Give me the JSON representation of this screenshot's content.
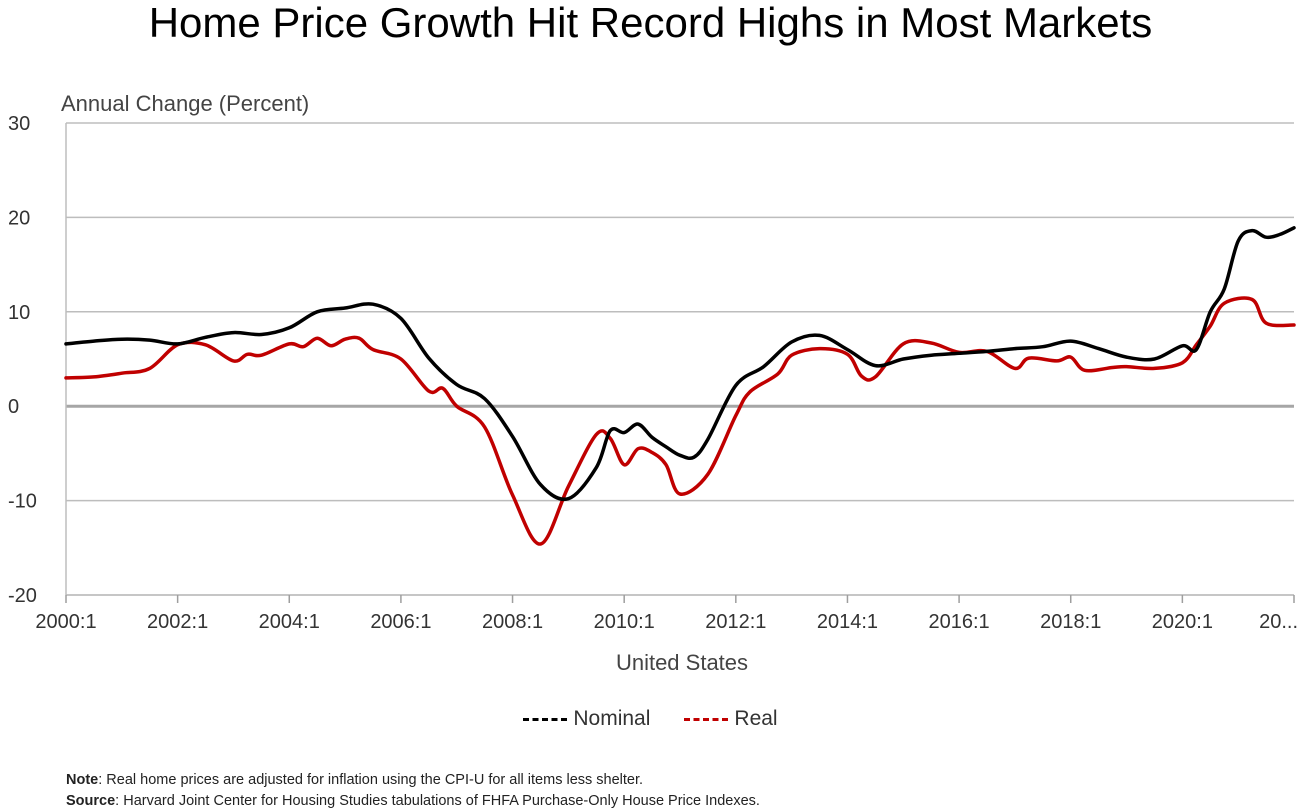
{
  "title": "Home Price Growth Hit Record Highs in Most Markets",
  "legend": {
    "nominal": "Nominal",
    "real": "Real"
  },
  "notes": {
    "note_label": "Note",
    "note_text": ": Real home prices are adjusted for inflation using the CPI-U for all items less shelter.",
    "source_label": "Source",
    "source_text": ": Harvard Joint Center for Housing Studies tabulations of FHFA Purchase-Only House Price Indexes."
  },
  "colors": {
    "nominal": "#000000",
    "real": "#c00000",
    "grid": "#bdbdbd",
    "zero": "#a6a6a6"
  },
  "chart_data": {
    "type": "line",
    "ylabel": "Annual Change (Percent)",
    "xlabel": "United States",
    "ylim": [
      -20,
      30
    ],
    "yticks": [
      30,
      20,
      10,
      0,
      -10,
      -20
    ],
    "xlim": [
      2000.0,
      2022.0
    ],
    "xticks": [
      {
        "x": 2000,
        "label": "2000:1"
      },
      {
        "x": 2002,
        "label": "2002:1"
      },
      {
        "x": 2004,
        "label": "2004:1"
      },
      {
        "x": 2006,
        "label": "2006:1"
      },
      {
        "x": 2008,
        "label": "2008:1"
      },
      {
        "x": 2010,
        "label": "2010:1"
      },
      {
        "x": 2012,
        "label": "2012:1"
      },
      {
        "x": 2014,
        "label": "2014:1"
      },
      {
        "x": 2016,
        "label": "2016:1"
      },
      {
        "x": 2018,
        "label": "2018:1"
      },
      {
        "x": 2020,
        "label": "2020:1"
      },
      {
        "x": 2022,
        "label": "20..."
      }
    ],
    "grid": true,
    "legend_position": "bottom",
    "series": [
      {
        "name": "Nominal",
        "color": "#000000",
        "points": [
          [
            2000.0,
            6.6
          ],
          [
            2000.5,
            6.9
          ],
          [
            2001.0,
            7.1
          ],
          [
            2001.5,
            7.0
          ],
          [
            2002.0,
            6.6
          ],
          [
            2002.5,
            7.3
          ],
          [
            2003.0,
            7.8
          ],
          [
            2003.5,
            7.6
          ],
          [
            2004.0,
            8.3
          ],
          [
            2004.5,
            10.0
          ],
          [
            2005.0,
            10.4
          ],
          [
            2005.5,
            10.8
          ],
          [
            2006.0,
            9.3
          ],
          [
            2006.5,
            5.1
          ],
          [
            2007.0,
            2.3
          ],
          [
            2007.5,
            0.8
          ],
          [
            2008.0,
            -3.2
          ],
          [
            2008.5,
            -8.3
          ],
          [
            2009.0,
            -9.8
          ],
          [
            2009.5,
            -6.5
          ],
          [
            2009.75,
            -2.6
          ],
          [
            2010.0,
            -2.8
          ],
          [
            2010.25,
            -1.9
          ],
          [
            2010.5,
            -3.3
          ],
          [
            2010.75,
            -4.3
          ],
          [
            2011.0,
            -5.2
          ],
          [
            2011.25,
            -5.4
          ],
          [
            2011.5,
            -3.5
          ],
          [
            2012.0,
            2.2
          ],
          [
            2012.5,
            4.2
          ],
          [
            2013.0,
            6.8
          ],
          [
            2013.5,
            7.5
          ],
          [
            2014.0,
            6.0
          ],
          [
            2014.5,
            4.3
          ],
          [
            2015.0,
            5.0
          ],
          [
            2015.5,
            5.4
          ],
          [
            2016.0,
            5.6
          ],
          [
            2016.5,
            5.8
          ],
          [
            2017.0,
            6.1
          ],
          [
            2017.5,
            6.3
          ],
          [
            2018.0,
            6.9
          ],
          [
            2018.5,
            6.1
          ],
          [
            2019.0,
            5.2
          ],
          [
            2019.5,
            5.0
          ],
          [
            2020.0,
            6.4
          ],
          [
            2020.25,
            6.0
          ],
          [
            2020.5,
            10.0
          ],
          [
            2020.75,
            12.4
          ],
          [
            2021.0,
            17.5
          ],
          [
            2021.25,
            18.6
          ],
          [
            2021.5,
            17.9
          ],
          [
            2021.75,
            18.2
          ],
          [
            2022.0,
            18.9
          ]
        ]
      },
      {
        "name": "Real",
        "color": "#c00000",
        "points": [
          [
            2000.0,
            3.0
          ],
          [
            2000.5,
            3.1
          ],
          [
            2001.0,
            3.5
          ],
          [
            2001.5,
            4.0
          ],
          [
            2002.0,
            6.5
          ],
          [
            2002.5,
            6.5
          ],
          [
            2003.0,
            4.8
          ],
          [
            2003.25,
            5.5
          ],
          [
            2003.5,
            5.4
          ],
          [
            2004.0,
            6.6
          ],
          [
            2004.25,
            6.3
          ],
          [
            2004.5,
            7.2
          ],
          [
            2004.75,
            6.4
          ],
          [
            2005.0,
            7.1
          ],
          [
            2005.25,
            7.2
          ],
          [
            2005.5,
            6.0
          ],
          [
            2006.0,
            5.0
          ],
          [
            2006.5,
            1.6
          ],
          [
            2006.75,
            1.9
          ],
          [
            2007.0,
            0.0
          ],
          [
            2007.5,
            -2.2
          ],
          [
            2008.0,
            -9.4
          ],
          [
            2008.5,
            -14.6
          ],
          [
            2009.0,
            -8.5
          ],
          [
            2009.5,
            -3.0
          ],
          [
            2009.75,
            -3.4
          ],
          [
            2010.0,
            -6.2
          ],
          [
            2010.25,
            -4.5
          ],
          [
            2010.5,
            -4.9
          ],
          [
            2010.75,
            -6.2
          ],
          [
            2011.0,
            -9.3
          ],
          [
            2011.5,
            -7.2
          ],
          [
            2012.0,
            -1.0
          ],
          [
            2012.25,
            1.5
          ],
          [
            2012.75,
            3.4
          ],
          [
            2013.0,
            5.4
          ],
          [
            2013.5,
            6.1
          ],
          [
            2014.0,
            5.5
          ],
          [
            2014.25,
            3.2
          ],
          [
            2014.5,
            3.1
          ],
          [
            2015.0,
            6.6
          ],
          [
            2015.5,
            6.7
          ],
          [
            2016.0,
            5.7
          ],
          [
            2016.5,
            5.8
          ],
          [
            2017.0,
            4.0
          ],
          [
            2017.25,
            5.1
          ],
          [
            2017.75,
            4.8
          ],
          [
            2018.0,
            5.2
          ],
          [
            2018.25,
            3.8
          ],
          [
            2018.75,
            4.1
          ],
          [
            2019.0,
            4.2
          ],
          [
            2019.5,
            4.0
          ],
          [
            2020.0,
            4.6
          ],
          [
            2020.25,
            6.5
          ],
          [
            2020.5,
            8.5
          ],
          [
            2020.75,
            10.9
          ],
          [
            2021.25,
            11.3
          ],
          [
            2021.5,
            8.8
          ],
          [
            2022.0,
            8.6
          ]
        ]
      }
    ]
  }
}
